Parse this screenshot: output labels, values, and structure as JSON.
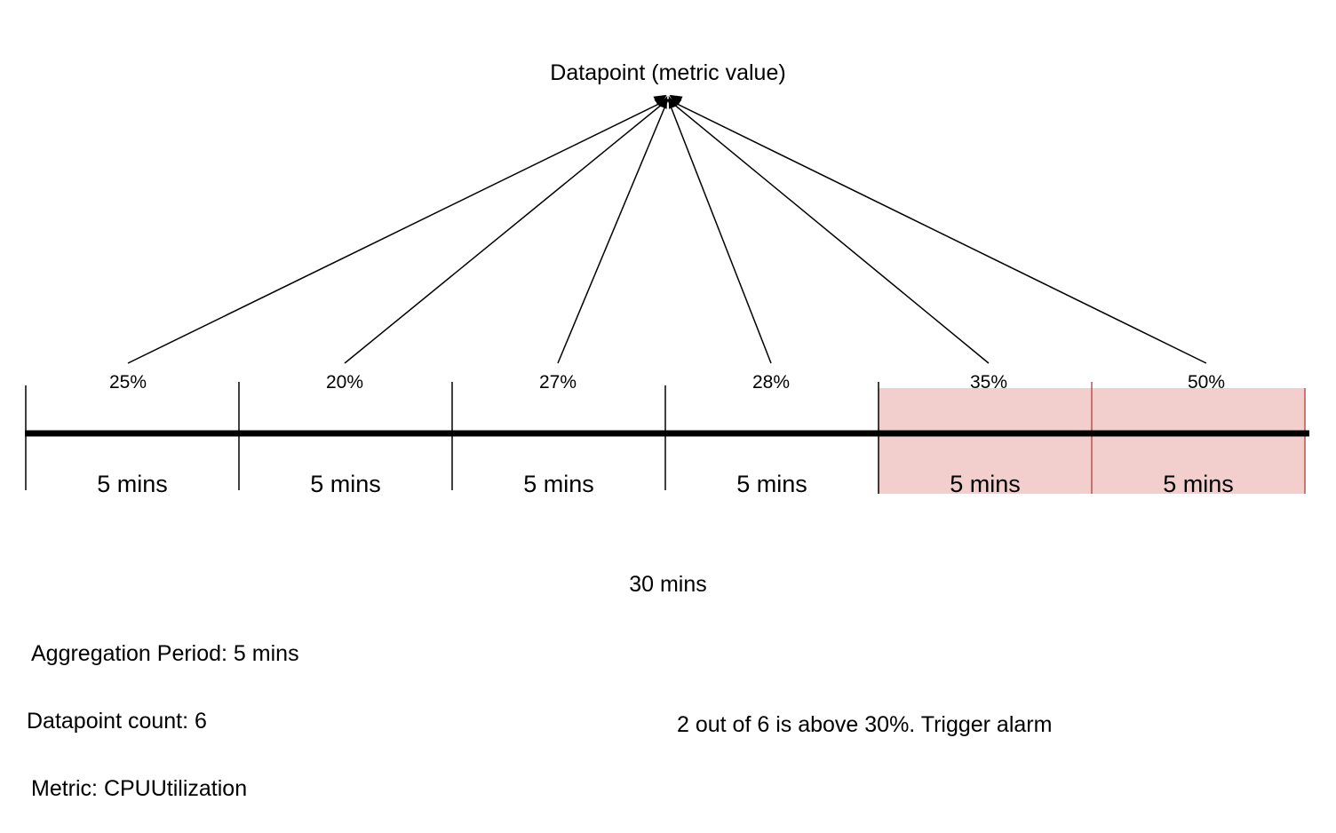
{
  "diagram": {
    "title": "Datapoint (metric value)",
    "threshold_percent": 30,
    "segments": [
      {
        "value": "25%",
        "duration": "5 mins",
        "above_threshold": false
      },
      {
        "value": "20%",
        "duration": "5 mins",
        "above_threshold": false
      },
      {
        "value": "27%",
        "duration": "5 mins",
        "above_threshold": false
      },
      {
        "value": "28%",
        "duration": "5 mins",
        "above_threshold": false
      },
      {
        "value": "35%",
        "duration": "5 mins",
        "above_threshold": true
      },
      {
        "value": "50%",
        "duration": "5 mins",
        "above_threshold": true
      }
    ],
    "total_duration": "30 mins",
    "info": {
      "aggregation": "Aggregation Period: 5 mins",
      "count": "Datapoint count: 6",
      "metric": "Metric: CPUUtilization"
    },
    "result": "2 out of 6 is above 30%. Trigger alarm"
  },
  "colors": {
    "highlight_fill": "#f2cfcc",
    "highlight_border": "#b85450",
    "line": "#000000"
  }
}
